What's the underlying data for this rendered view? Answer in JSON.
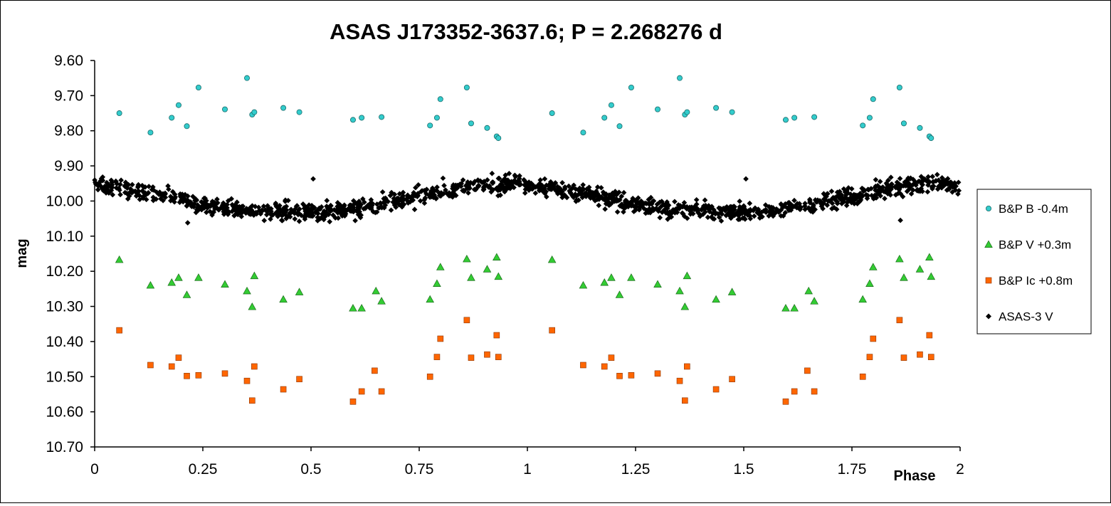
{
  "chart_data": {
    "type": "scatter",
    "title": "ASAS J173352-3637.6; P = 2.268276 d",
    "xlabel": "Phase",
    "ylabel": "mag",
    "xlim": [
      0,
      2
    ],
    "ylim": [
      9.6,
      10.7
    ],
    "y_inverted": true,
    "grid": false,
    "legend_position": "right",
    "x_ticks": [
      "0",
      "0.25",
      "0.5",
      "0.75",
      "1",
      "1.25",
      "1.5",
      "1.75",
      "2"
    ],
    "y_ticks": [
      "9.60",
      "9.70",
      "9.80",
      "9.90",
      "10.00",
      "10.10",
      "10.20",
      "10.30",
      "10.40",
      "10.50",
      "10.60",
      "10.70"
    ],
    "series": [
      {
        "name": "B&P B -0.4m",
        "marker": "circle",
        "color": "#33CCCC",
        "points": [
          [
            0.057,
            9.75
          ],
          [
            0.129,
            9.805
          ],
          [
            0.178,
            9.763
          ],
          [
            0.194,
            9.727
          ],
          [
            0.213,
            9.787
          ],
          [
            0.24,
            9.677
          ],
          [
            0.301,
            9.739
          ],
          [
            0.352,
            9.65
          ],
          [
            0.364,
            9.754
          ],
          [
            0.369,
            9.747
          ],
          [
            0.436,
            9.735
          ],
          [
            0.473,
            9.747
          ],
          [
            0.597,
            9.769
          ],
          [
            0.617,
            9.763
          ],
          [
            0.663,
            9.761
          ],
          [
            0.775,
            9.785
          ],
          [
            0.791,
            9.763
          ],
          [
            0.799,
            9.71
          ],
          [
            0.86,
            9.677
          ],
          [
            0.87,
            9.779
          ],
          [
            0.907,
            9.792
          ],
          [
            0.929,
            9.816
          ],
          [
            0.933,
            9.821
          ]
        ]
      },
      {
        "name": "B&P V +0.3m",
        "marker": "triangle",
        "color": "#33CC33",
        "points": [
          [
            0.057,
            10.167
          ],
          [
            0.129,
            10.24
          ],
          [
            0.178,
            10.232
          ],
          [
            0.194,
            10.218
          ],
          [
            0.213,
            10.267
          ],
          [
            0.24,
            10.218
          ],
          [
            0.301,
            10.237
          ],
          [
            0.352,
            10.256
          ],
          [
            0.364,
            10.301
          ],
          [
            0.369,
            10.213
          ],
          [
            0.436,
            10.28
          ],
          [
            0.473,
            10.259
          ],
          [
            0.597,
            10.305
          ],
          [
            0.617,
            10.305
          ],
          [
            0.65,
            10.256
          ],
          [
            0.663,
            10.285
          ],
          [
            0.775,
            10.28
          ],
          [
            0.791,
            10.235
          ],
          [
            0.799,
            10.188
          ],
          [
            0.86,
            10.165
          ],
          [
            0.87,
            10.218
          ],
          [
            0.907,
            10.194
          ],
          [
            0.929,
            10.16
          ],
          [
            0.933,
            10.215
          ]
        ]
      },
      {
        "name": "B&P Ic +0.8m",
        "marker": "square",
        "color": "#FF6600",
        "points": [
          [
            0.057,
            10.368
          ],
          [
            0.129,
            10.467
          ],
          [
            0.178,
            10.471
          ],
          [
            0.194,
            10.446
          ],
          [
            0.213,
            10.498
          ],
          [
            0.24,
            10.496
          ],
          [
            0.301,
            10.491
          ],
          [
            0.352,
            10.512
          ],
          [
            0.364,
            10.568
          ],
          [
            0.369,
            10.471
          ],
          [
            0.436,
            10.536
          ],
          [
            0.473,
            10.507
          ],
          [
            0.597,
            10.571
          ],
          [
            0.617,
            10.542
          ],
          [
            0.647,
            10.483
          ],
          [
            0.663,
            10.542
          ],
          [
            0.775,
            10.5
          ],
          [
            0.791,
            10.444
          ],
          [
            0.799,
            10.392
          ],
          [
            0.86,
            10.339
          ],
          [
            0.87,
            10.446
          ],
          [
            0.907,
            10.437
          ],
          [
            0.929,
            10.382
          ],
          [
            0.933,
            10.444
          ]
        ]
      },
      {
        "name": "ASAS-3 V",
        "marker": "diamond",
        "color": "#000000",
        "phase_coverage": [
          0,
          2
        ],
        "approx_trend": [
          [
            0.0,
            9.955
          ],
          [
            0.05,
            9.96
          ],
          [
            0.1,
            9.972
          ],
          [
            0.15,
            9.98
          ],
          [
            0.2,
            9.995
          ],
          [
            0.25,
            10.012
          ],
          [
            0.3,
            10.022
          ],
          [
            0.35,
            10.025
          ],
          [
            0.4,
            10.028
          ],
          [
            0.45,
            10.03
          ],
          [
            0.5,
            10.033
          ],
          [
            0.55,
            10.03
          ],
          [
            0.6,
            10.022
          ],
          [
            0.65,
            10.012
          ],
          [
            0.7,
            10.0
          ],
          [
            0.75,
            9.988
          ],
          [
            0.8,
            9.975
          ],
          [
            0.85,
            9.962
          ],
          [
            0.9,
            9.955
          ],
          [
            0.95,
            9.95
          ],
          [
            1.0,
            9.955
          ],
          [
            1.05,
            9.96
          ],
          [
            1.1,
            9.972
          ],
          [
            1.15,
            9.98
          ],
          [
            1.2,
            9.995
          ],
          [
            1.25,
            10.012
          ],
          [
            1.3,
            10.022
          ],
          [
            1.35,
            10.025
          ],
          [
            1.4,
            10.028
          ],
          [
            1.45,
            10.03
          ],
          [
            1.5,
            10.033
          ],
          [
            1.55,
            10.03
          ],
          [
            1.6,
            10.022
          ],
          [
            1.65,
            10.012
          ],
          [
            1.7,
            10.0
          ],
          [
            1.75,
            9.988
          ],
          [
            1.8,
            9.975
          ],
          [
            1.85,
            9.962
          ],
          [
            1.9,
            9.955
          ],
          [
            1.95,
            9.95
          ],
          [
            2.0,
            9.955
          ]
        ],
        "scatter_mag": 0.022,
        "outliers": [
          [
            0.505,
            9.937
          ],
          [
            0.805,
            9.935
          ],
          [
            0.215,
            10.062
          ],
          [
            1.505,
            9.937
          ],
          [
            1.862,
            10.055
          ]
        ]
      }
    ]
  }
}
